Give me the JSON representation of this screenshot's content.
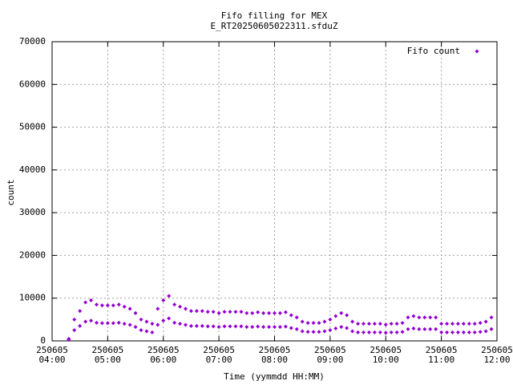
{
  "chart_data": {
    "type": "scatter",
    "title": "Fifo filling for MEX",
    "subtitle": "E_RT20250605022311.sfduZ",
    "x_label": "Time (yymmdd HH:MM)",
    "y_label": "count",
    "xlim": [
      4,
      12
    ],
    "xticks": [
      {
        "value": 4,
        "label": "250605 04:00"
      },
      {
        "value": 5,
        "label": "250605 05:00"
      },
      {
        "value": 6,
        "label": "250605 06:00"
      },
      {
        "value": 7,
        "label": "250605 07:00"
      },
      {
        "value": 8,
        "label": "250605 08:00"
      },
      {
        "value": 9,
        "label": "250605 09:00"
      },
      {
        "value": 10,
        "label": "250605 10:00"
      },
      {
        "value": 11,
        "label": "250605 11:00"
      },
      {
        "value": 12,
        "label": "250605 12:00"
      }
    ],
    "ylim": [
      0,
      70000
    ],
    "yticks": [
      0,
      10000,
      20000,
      30000,
      40000,
      50000,
      60000,
      70000
    ],
    "grid": true,
    "legend": "top-right",
    "series": [
      {
        "name": "Fifo count",
        "color": "#9400d3",
        "x": [
          4.3,
          4.4,
          4.5,
          4.6,
          4.7,
          4.8,
          4.9,
          5.0,
          5.1,
          5.2,
          5.3,
          5.4,
          5.5,
          5.6,
          5.7,
          5.8,
          5.9,
          6.0,
          6.1,
          6.2,
          6.3,
          6.4,
          6.5,
          6.6,
          6.7,
          6.8,
          6.9,
          7.0,
          7.1,
          7.2,
          7.3,
          7.4,
          7.5,
          7.6,
          7.7,
          7.8,
          7.9,
          8.0,
          8.1,
          8.2,
          8.3,
          8.4,
          8.5,
          8.6,
          8.7,
          8.8,
          8.9,
          9.0,
          9.1,
          9.2,
          9.3,
          9.4,
          9.5,
          9.6,
          9.7,
          9.8,
          9.9,
          10.0,
          10.1,
          10.2,
          10.3,
          10.4,
          10.5,
          10.6,
          10.7,
          10.8,
          10.9,
          11.0,
          11.1,
          11.2,
          11.3,
          11.4,
          11.5,
          11.6,
          11.7,
          11.8,
          11.9,
          4.3,
          4.4,
          4.5,
          4.6,
          4.7,
          4.8,
          4.9,
          5.0,
          5.1,
          5.2,
          5.3,
          5.4,
          5.5,
          5.6,
          5.7,
          5.8,
          5.9,
          6.0,
          6.1,
          6.2,
          6.3,
          6.4,
          6.5,
          6.6,
          6.7,
          6.8,
          6.9,
          7.0,
          7.1,
          7.2,
          7.3,
          7.4,
          7.5,
          7.6,
          7.7,
          7.8,
          7.9,
          8.0,
          8.1,
          8.2,
          8.3,
          8.4,
          8.5,
          8.6,
          8.7,
          8.8,
          8.9,
          9.0,
          9.1,
          9.2,
          9.3,
          9.4,
          9.5,
          9.6,
          9.7,
          9.8,
          9.9,
          10.0,
          10.1,
          10.2,
          10.3,
          10.4,
          10.5,
          10.6,
          10.7,
          10.8,
          10.9,
          11.0,
          11.1,
          11.2,
          11.3,
          11.4,
          11.5,
          11.6,
          11.7,
          11.8,
          11.9
        ],
        "values": [
          500,
          5000,
          7000,
          9000,
          9500,
          8500,
          8300,
          8300,
          8300,
          8500,
          8000,
          7500,
          6500,
          5000,
          4500,
          4000,
          7500,
          9500,
          10500,
          8500,
          8000,
          7500,
          7000,
          7000,
          7000,
          6800,
          6800,
          6500,
          6800,
          6800,
          6800,
          6800,
          6500,
          6500,
          6700,
          6500,
          6500,
          6500,
          6500,
          6700,
          6000,
          5500,
          4500,
          4200,
          4200,
          4200,
          4500,
          5000,
          5800,
          6500,
          6000,
          4500,
          4000,
          4000,
          4000,
          4000,
          4000,
          3800,
          4000,
          4000,
          4200,
          5500,
          5800,
          5500,
          5500,
          5500,
          5500,
          4000,
          4000,
          4000,
          4000,
          4000,
          4000,
          4000,
          4200,
          4500,
          5500,
          250,
          2500,
          3500,
          4500,
          4750,
          4250,
          4150,
          4150,
          4150,
          4250,
          4000,
          3750,
          3250,
          2500,
          2250,
          2000,
          3750,
          4750,
          5250,
          4250,
          4000,
          3750,
          3500,
          3500,
          3500,
          3400,
          3400,
          3250,
          3400,
          3400,
          3400,
          3400,
          3250,
          3250,
          3350,
          3250,
          3250,
          3250,
          3250,
          3350,
          3000,
          2750,
          2250,
          2100,
          2100,
          2100,
          2250,
          2500,
          2900,
          3250,
          3000,
          2250,
          2000,
          2000,
          2000,
          2000,
          2000,
          1900,
          2000,
          2000,
          2100,
          2750,
          2900,
          2750,
          2750,
          2750,
          2750,
          2000,
          2000,
          2000,
          2000,
          2000,
          2000,
          2000,
          2100,
          2250,
          2750
        ]
      }
    ]
  }
}
